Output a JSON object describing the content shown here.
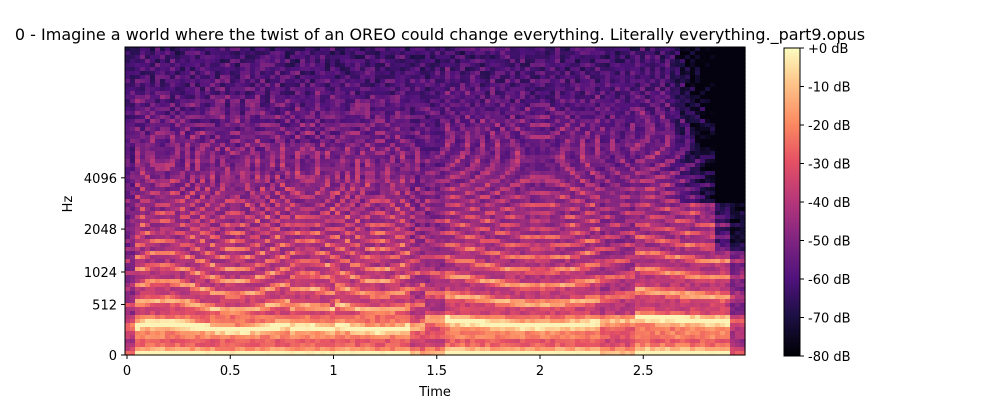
{
  "chart_data": {
    "type": "heatmap",
    "title": "0 - Imagine a world where the twist of an OREO could change everything. Literally everything._part9.opus",
    "xlabel": "Time",
    "ylabel": "Hz",
    "x_ticks": [
      {
        "value": 0,
        "label": "0"
      },
      {
        "value": 0.5,
        "label": "0.5"
      },
      {
        "value": 1,
        "label": "1"
      },
      {
        "value": 1.5,
        "label": "1.5"
      },
      {
        "value": 2,
        "label": "2"
      },
      {
        "value": 2.5,
        "label": "2.5"
      }
    ],
    "xlim": [
      0,
      3.0
    ],
    "y_scale": "mel",
    "y_ticks": [
      {
        "value": 0,
        "label": "0"
      },
      {
        "value": 512,
        "label": "512"
      },
      {
        "value": 1024,
        "label": "1024"
      },
      {
        "value": 2048,
        "label": "2048"
      },
      {
        "value": 4096,
        "label": "4096"
      }
    ],
    "colorbar": {
      "cmap": "magma",
      "range_db": [
        -80,
        0
      ],
      "ticks": [
        {
          "value": 0,
          "label": "+0 dB"
        },
        {
          "value": -10,
          "label": "-10 dB"
        },
        {
          "value": -20,
          "label": "-20 dB"
        },
        {
          "value": -30,
          "label": "-30 dB"
        },
        {
          "value": -40,
          "label": "-40 dB"
        },
        {
          "value": -50,
          "label": "-50 dB"
        },
        {
          "value": -60,
          "label": "-60 dB"
        },
        {
          "value": -70,
          "label": "-70 dB"
        },
        {
          "value": -80,
          "label": "-80 dB"
        }
      ]
    },
    "grid": false,
    "legend": "none"
  }
}
